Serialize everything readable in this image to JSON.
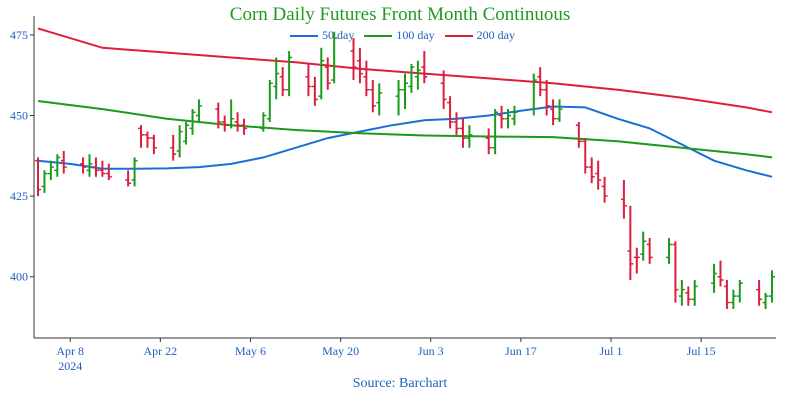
{
  "chart_data": {
    "type": "line",
    "title": "Corn Daily Futures Front Month Continuous",
    "source": "Source: Barchart",
    "y_ticks": [
      400,
      425,
      450,
      475
    ],
    "ylim": [
      381,
      479
    ],
    "x_ticks": [
      {
        "label": "Apr 8",
        "sub": "2024",
        "day": 5
      },
      {
        "label": "Apr 22",
        "day": 19
      },
      {
        "label": "May 6",
        "day": 33
      },
      {
        "label": "May 20",
        "day": 47
      },
      {
        "label": "Jun 3",
        "day": 61
      },
      {
        "label": "Jun 17",
        "day": 75
      },
      {
        "label": "Jul 1",
        "day": 89
      },
      {
        "label": "Jul 15",
        "day": 103
      }
    ],
    "xlim": [
      0,
      114
    ],
    "ohlc": [
      [
        0,
        436,
        437,
        425,
        427,
        "down"
      ],
      [
        1,
        428,
        433,
        426,
        432,
        "up"
      ],
      [
        2,
        432,
        436,
        430,
        434,
        "up"
      ],
      [
        3,
        433,
        438,
        431,
        437,
        "up"
      ],
      [
        4,
        436,
        439,
        432,
        434,
        "down"
      ],
      [
        7,
        435,
        437,
        432,
        434,
        "down"
      ],
      [
        8,
        433,
        438,
        431,
        435,
        "up"
      ],
      [
        9,
        434,
        437,
        431,
        433,
        "down"
      ],
      [
        10,
        433,
        436,
        431,
        432,
        "down"
      ],
      [
        11,
        432,
        435,
        430,
        431,
        "down"
      ],
      [
        14,
        430,
        433,
        428,
        429,
        "down"
      ],
      [
        15,
        430,
        437,
        428,
        436,
        "up"
      ],
      [
        16,
        446,
        447,
        440,
        444,
        "down"
      ],
      [
        17,
        444,
        445,
        440,
        443,
        "down"
      ],
      [
        18,
        443,
        444,
        438,
        440,
        "down"
      ],
      [
        21,
        440,
        444,
        436,
        438,
        "down"
      ],
      [
        22,
        439,
        447,
        437,
        445,
        "up"
      ],
      [
        23,
        442,
        448,
        441,
        447,
        "up"
      ],
      [
        24,
        446,
        452,
        444,
        451,
        "up"
      ],
      [
        25,
        450,
        455,
        448,
        453,
        "up"
      ],
      [
        28,
        452,
        454,
        446,
        448,
        "down"
      ],
      [
        29,
        448,
        450,
        445,
        447,
        "down"
      ],
      [
        30,
        447,
        455,
        446,
        449,
        "up"
      ],
      [
        31,
        448,
        451,
        445,
        447,
        "down"
      ],
      [
        32,
        447,
        449,
        444,
        446,
        "down"
      ],
      [
        35,
        446,
        451,
        445,
        450,
        "up"
      ],
      [
        36,
        449,
        461,
        448,
        460,
        "up"
      ],
      [
        37,
        459,
        468,
        455,
        463,
        "up"
      ],
      [
        38,
        462,
        465,
        456,
        458,
        "down"
      ],
      [
        39,
        458,
        470,
        456,
        468,
        "up"
      ],
      [
        42,
        462,
        466,
        456,
        459,
        "down"
      ],
      [
        43,
        459,
        462,
        453,
        455,
        "down"
      ],
      [
        44,
        456,
        471,
        455,
        467,
        "up"
      ],
      [
        45,
        465,
        468,
        458,
        460,
        "down"
      ],
      [
        46,
        461,
        476,
        460,
        474,
        "up"
      ],
      [
        49,
        470,
        474,
        461,
        465,
        "down"
      ],
      [
        50,
        467,
        471,
        460,
        463,
        "down"
      ],
      [
        51,
        462,
        467,
        456,
        458,
        "down"
      ],
      [
        52,
        458,
        461,
        451,
        453,
        "down"
      ],
      [
        53,
        454,
        460,
        450,
        457,
        "up"
      ],
      [
        56,
        456,
        461,
        450,
        458,
        "up"
      ],
      [
        57,
        458,
        463,
        452,
        460,
        "up"
      ],
      [
        58,
        459,
        466,
        457,
        465,
        "up"
      ],
      [
        59,
        462,
        467,
        458,
        464,
        "up"
      ],
      [
        60,
        465,
        470,
        460,
        462,
        "down"
      ],
      [
        63,
        460,
        464,
        452,
        455,
        "down"
      ],
      [
        64,
        454,
        456,
        446,
        448,
        "down"
      ],
      [
        65,
        448,
        451,
        444,
        446,
        "down"
      ],
      [
        66,
        446,
        449,
        440,
        443,
        "down"
      ],
      [
        67,
        443,
        447,
        440,
        444,
        "up"
      ],
      [
        70,
        443,
        446,
        438,
        440,
        "down"
      ],
      [
        71,
        440,
        452,
        438,
        451,
        "up"
      ],
      [
        72,
        450,
        453,
        446,
        449,
        "down"
      ],
      [
        73,
        449,
        452,
        446,
        450,
        "up"
      ],
      [
        74,
        449,
        453,
        447,
        451,
        "up"
      ],
      [
        77,
        452,
        463,
        450,
        461,
        "up"
      ],
      [
        78,
        462,
        465,
        456,
        458,
        "down"
      ],
      [
        79,
        458,
        461,
        450,
        453,
        "down"
      ],
      [
        80,
        452,
        455,
        447,
        449,
        "down"
      ],
      [
        81,
        449,
        455,
        448,
        452,
        "up"
      ],
      [
        84,
        447,
        448,
        440,
        442,
        "down"
      ],
      [
        85,
        442,
        443,
        432,
        434,
        "down"
      ],
      [
        86,
        434,
        437,
        429,
        431,
        "down"
      ],
      [
        87,
        432,
        436,
        427,
        430,
        "down"
      ],
      [
        88,
        428,
        431,
        423,
        425,
        "down"
      ],
      [
        91,
        424,
        430,
        418,
        422,
        "down"
      ],
      [
        92,
        408,
        422,
        399,
        404,
        "down"
      ],
      [
        93,
        406,
        409,
        401,
        406,
        "down"
      ],
      [
        94,
        407,
        414,
        405,
        411,
        "up"
      ],
      [
        95,
        410,
        412,
        404,
        406,
        "down"
      ],
      [
        98,
        406,
        412,
        404,
        410,
        "up"
      ],
      [
        99,
        410,
        411,
        392,
        396,
        "down"
      ],
      [
        100,
        394,
        399,
        391,
        396,
        "up"
      ],
      [
        101,
        395,
        397,
        391,
        393,
        "down"
      ],
      [
        102,
        393,
        399,
        391,
        397,
        "up"
      ],
      [
        105,
        398,
        404,
        395,
        401,
        "up"
      ],
      [
        106,
        400,
        405,
        397,
        399,
        "down"
      ],
      [
        107,
        397,
        399,
        390,
        392,
        "down"
      ],
      [
        108,
        392,
        396,
        390,
        394,
        "up"
      ],
      [
        109,
        394,
        399,
        392,
        398,
        "up"
      ],
      [
        112,
        396,
        399,
        391,
        393,
        "down"
      ],
      [
        113,
        392,
        395,
        390,
        394,
        "up"
      ],
      [
        114,
        394,
        402,
        392,
        400,
        "up"
      ]
    ],
    "series": [
      {
        "name": "50 day",
        "color": "#1a6fd6",
        "x": [
          0,
          5,
          10,
          15,
          20,
          25,
          30,
          35,
          40,
          45,
          50,
          55,
          60,
          65,
          70,
          75,
          80,
          85,
          90,
          95,
          100,
          105,
          110,
          114
        ],
        "y": [
          436,
          435,
          433.5,
          433.5,
          433.6,
          434,
          435,
          437,
          440,
          443,
          445,
          447,
          448.5,
          449,
          450,
          451.5,
          452.8,
          452.5,
          449,
          446,
          441,
          436,
          433,
          431
        ]
      },
      {
        "name": "100 day",
        "color": "#1c9a1c",
        "x": [
          0,
          10,
          20,
          30,
          40,
          50,
          60,
          70,
          80,
          90,
          100,
          110,
          114
        ],
        "y": [
          454.5,
          452,
          449,
          447,
          445.5,
          444.5,
          443.8,
          443.5,
          443.3,
          442,
          440,
          438,
          437
        ]
      },
      {
        "name": "200 day",
        "color": "#dc1f3c",
        "x": [
          0,
          10,
          20,
          30,
          40,
          50,
          60,
          70,
          80,
          90,
          100,
          110,
          114
        ],
        "y": [
          477,
          471,
          469.5,
          468,
          466.5,
          464.5,
          463,
          461.5,
          460,
          458,
          455.5,
          452.5,
          451
        ]
      }
    ],
    "up_color": "#1c9a1c",
    "down_color": "#dc1f3c",
    "axis_color": "#1f5fbf",
    "grid": false,
    "legend_position": "top-center"
  }
}
